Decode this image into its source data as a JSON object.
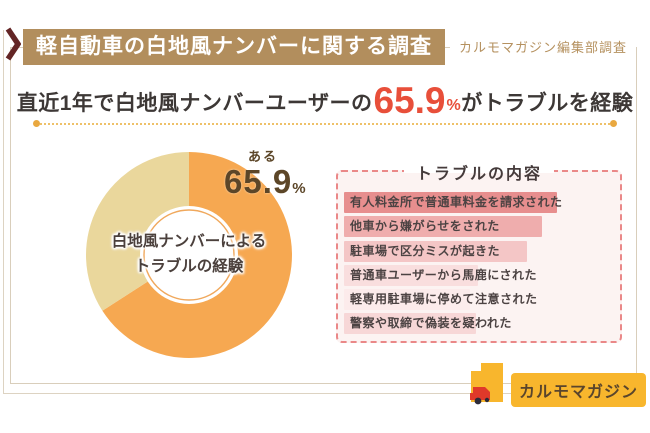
{
  "header": {
    "badge_label": "軽自動車の白地風ナンバーに関する調査",
    "badge_bg": "#b28e5d",
    "chevron_icon": "right-chevron",
    "chevron_color": "#632525",
    "credit": "カルモマガジン編集部調査",
    "credit_color": "#b5915f"
  },
  "headline": {
    "prefix": "直近1年で白地風ナンバーユーザーの",
    "value": "65.9",
    "unit": "%",
    "suffix": "がトラブルを経験",
    "value_color": "#e84f3a",
    "text_color": "#3d3836"
  },
  "chart_data": [
    {
      "type": "pie",
      "subtype": "donut",
      "title": "白地風ナンバーによるトラブルの経験",
      "center_label_lines": [
        "白地風ナンバーによる",
        "トラブルの経験"
      ],
      "series": [
        {
          "label": "ある",
          "value": 65.9
        },
        {
          "label": "",
          "value": 34.1
        }
      ],
      "colors": [
        "#f6a851",
        "#ead79c"
      ],
      "hole_color": "#ffffff",
      "hole_ring_color": "#f0a85c",
      "start_angle_deg": 0,
      "direction": "clockwise",
      "callout": {
        "label": "ある",
        "value": "65.9",
        "unit": "%",
        "color": "#5c4628"
      }
    },
    {
      "type": "bar",
      "title": "トラブルの内容",
      "orientation": "horizontal",
      "categories": [
        "有人料金所で普通車料金を請求された",
        "他車から嫌がらせをされた",
        "駐車場で区分ミスが起きた",
        "普通車ユーザーから馬鹿にされた",
        "軽専用駐車場に停めて注意された",
        "警察や取締で偽装を疑われた"
      ],
      "values": [
        100,
        93,
        86,
        63,
        59,
        62
      ],
      "value_unit": "relative-length-estimated-no-labels-shown",
      "max_bar_width_pct": 79,
      "bar_colors": [
        "#e78e8e",
        "#efadad",
        "#f4c6c6",
        "#f9dede",
        "#fcebeb",
        "#f7d7d7"
      ],
      "panel_bg": "#fcf3f2",
      "panel_border_color": "#ea8888",
      "text_color": "#4c4343"
    }
  ],
  "logo": {
    "text": "カルモマガジン",
    "badge_bg": "#f8b62d",
    "text_color": "#5a452c",
    "icon": "carmo-truck-icon"
  },
  "frame_color": "#d9cebb"
}
